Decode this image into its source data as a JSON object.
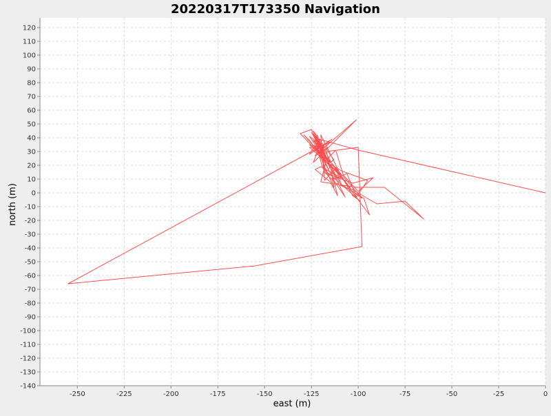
{
  "chart_data": {
    "type": "line",
    "title": "20220317T173350 Navigation",
    "xlabel": "east (m)",
    "ylabel": "north (m)",
    "xlim": [
      -270,
      0
    ],
    "ylim": [
      -140,
      127
    ],
    "x_ticks": [
      -250,
      -225,
      -200,
      -175,
      -150,
      -125,
      -100,
      -75,
      -50,
      -25,
      0
    ],
    "y_ticks": [
      -140,
      -130,
      -120,
      -110,
      -100,
      -90,
      -80,
      -70,
      -60,
      -50,
      -40,
      -30,
      -20,
      -10,
      0,
      10,
      20,
      30,
      40,
      50,
      60,
      70,
      80,
      90,
      100,
      110,
      120
    ],
    "grid": true,
    "colors": {
      "series": "#ff4d4d",
      "plot_bg": "#ffffff",
      "grid": "#d9d9d9",
      "page_bg": "#eeeeee"
    },
    "series": [
      {
        "x": [
          0,
          -100,
          -121,
          -126,
          -114,
          -121,
          -124,
          -101,
          -118,
          -126,
          -116,
          -109,
          -120,
          -118,
          -112,
          -109,
          -97,
          -94,
          -110,
          -114,
          -104,
          -90,
          -75,
          -65,
          -86,
          -101,
          -120,
          -117,
          -112,
          -108,
          -100,
          -92,
          -103,
          -117,
          -121,
          -118,
          -113,
          -106,
          -101,
          -95,
          -109,
          -119,
          -123,
          -116,
          -108,
          -103,
          -99,
          -119,
          -122,
          -119,
          -118,
          -112,
          -104,
          -98,
          -117,
          -122,
          -122,
          -118,
          -116,
          -113,
          -114,
          -107,
          -125,
          -131,
          -121,
          -126,
          -129,
          -117,
          -122,
          -118,
          -125,
          -120,
          -115,
          -110,
          -126,
          -120,
          -124,
          -116,
          -114,
          -120,
          -124,
          -115,
          -113,
          -124,
          -118,
          -122,
          -119,
          -126,
          -108,
          -120,
          -123,
          -115,
          -111,
          -117,
          -100,
          -98,
          -155,
          -255,
          -125,
          -115,
          -121,
          -118,
          -123,
          -116,
          -120
        ],
        "y": [
          0,
          31,
          39,
          28,
          39,
          33,
          22,
          53,
          33,
          33,
          21,
          12,
          42,
          9,
          18,
          6,
          -4,
          -16,
          13,
          21,
          3,
          -8,
          -6,
          -19,
          4,
          4,
          8,
          24,
          31,
          13,
          1,
          11,
          7,
          14,
          34,
          22,
          10,
          14,
          -3,
          9,
          16,
          24,
          37,
          22,
          10,
          -2,
          -6,
          18,
          33,
          25,
          15,
          7,
          2,
          -4,
          26,
          42,
          32,
          19,
          13,
          4,
          11,
          -3,
          46,
          43,
          29,
          38,
          42,
          24,
          39,
          27,
          44,
          33,
          20,
          8,
          41,
          35,
          43,
          17,
          21,
          36,
          38,
          22,
          24,
          45,
          28,
          40,
          32,
          35,
          10,
          19,
          17,
          8,
          -2,
          30,
          33,
          -39,
          -53,
          -66,
          30,
          37,
          29,
          35,
          27,
          33,
          30
        ]
      }
    ]
  }
}
